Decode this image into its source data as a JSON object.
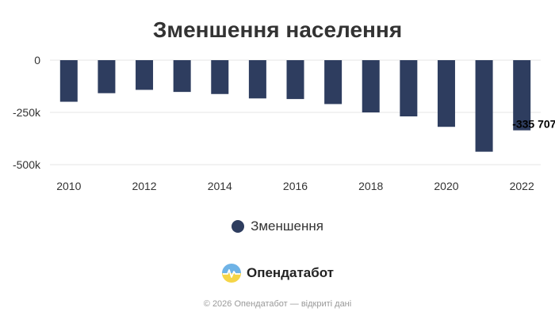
{
  "chart_data": {
    "type": "bar",
    "title": "Зменшення населення",
    "xlabel": "",
    "ylabel": "",
    "categories": [
      "2010",
      "2011",
      "2012",
      "2013",
      "2014",
      "2015",
      "2016",
      "2017",
      "2018",
      "2019",
      "2020",
      "2021",
      "2022"
    ],
    "x_tick_labels": [
      "2010",
      "2012",
      "2014",
      "2016",
      "2018",
      "2020",
      "2022"
    ],
    "y_tick_labels": [
      "0",
      "-250k",
      "-500k"
    ],
    "y_tick_values": [
      0,
      -250000,
      -500000
    ],
    "ylim": [
      -500000,
      0
    ],
    "series": [
      {
        "name": "Зменшення",
        "color": "#2e3d5f",
        "values": [
          -199000,
          -158000,
          -142000,
          -152000,
          -162000,
          -183000,
          -186000,
          -210000,
          -250000,
          -269000,
          -319000,
          -438000,
          -335707
        ]
      }
    ],
    "data_labels": [
      {
        "index": 12,
        "text": "-335 707"
      }
    ],
    "legend_position": "bottom",
    "grid": true
  },
  "brand": {
    "name": "Опендатабот",
    "icon": "opendatabot-logo-icon"
  },
  "footer": {
    "text": "© 2026 Опендатабот — відкриті дані"
  },
  "colors": {
    "bar": "#2e3d5f",
    "grid": "#e6e6e6",
    "logo_top": "#6fb3e6",
    "logo_bottom": "#f5d547"
  }
}
